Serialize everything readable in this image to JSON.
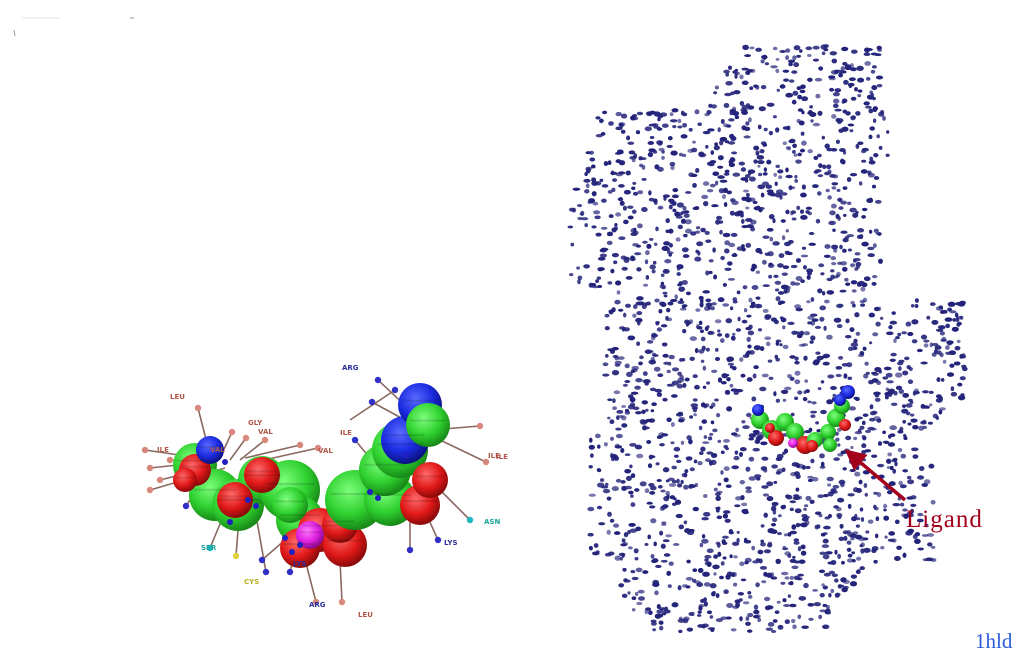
{
  "left_panel": {
    "residue_labels": [
      {
        "text": "LEU",
        "color": "#b0584a"
      },
      {
        "text": "GLY",
        "color": "#b0584a"
      },
      {
        "text": "VAL",
        "color": "#b0584a"
      },
      {
        "text": "ILE",
        "color": "#b0584a"
      },
      {
        "text": "VAL",
        "color": "#b0584a"
      },
      {
        "text": "ILE",
        "color": "#b0584a"
      },
      {
        "text": "VAL",
        "color": "#b0584a"
      },
      {
        "text": "ARG",
        "color": "#2b2f9a"
      },
      {
        "text": "ILE",
        "color": "#b0584a"
      },
      {
        "text": "ILE",
        "color": "#b0584a"
      },
      {
        "text": "ASN",
        "color": "#1aa39c"
      },
      {
        "text": "LYS",
        "color": "#2b2f9a"
      },
      {
        "text": "SER",
        "color": "#1aa39c"
      },
      {
        "text": "CYS",
        "color": "#b8b020"
      },
      {
        "text": "LYS",
        "color": "#2b2f9a"
      },
      {
        "text": "ARG",
        "color": "#2b2f9a"
      },
      {
        "text": "LEU",
        "color": "#b0584a"
      }
    ]
  },
  "right_panel": {
    "annotation_label": "Ligand",
    "annotation_color": "#a3001c",
    "atom_color": "#23237a"
  },
  "pdb_id": "1hld",
  "colors": {
    "carbon": "#33dd33",
    "oxygen": "#e01a1a",
    "nitrogen": "#1a2be0",
    "phosphorus": "#e020e0",
    "bond": "#8a6a60"
  }
}
